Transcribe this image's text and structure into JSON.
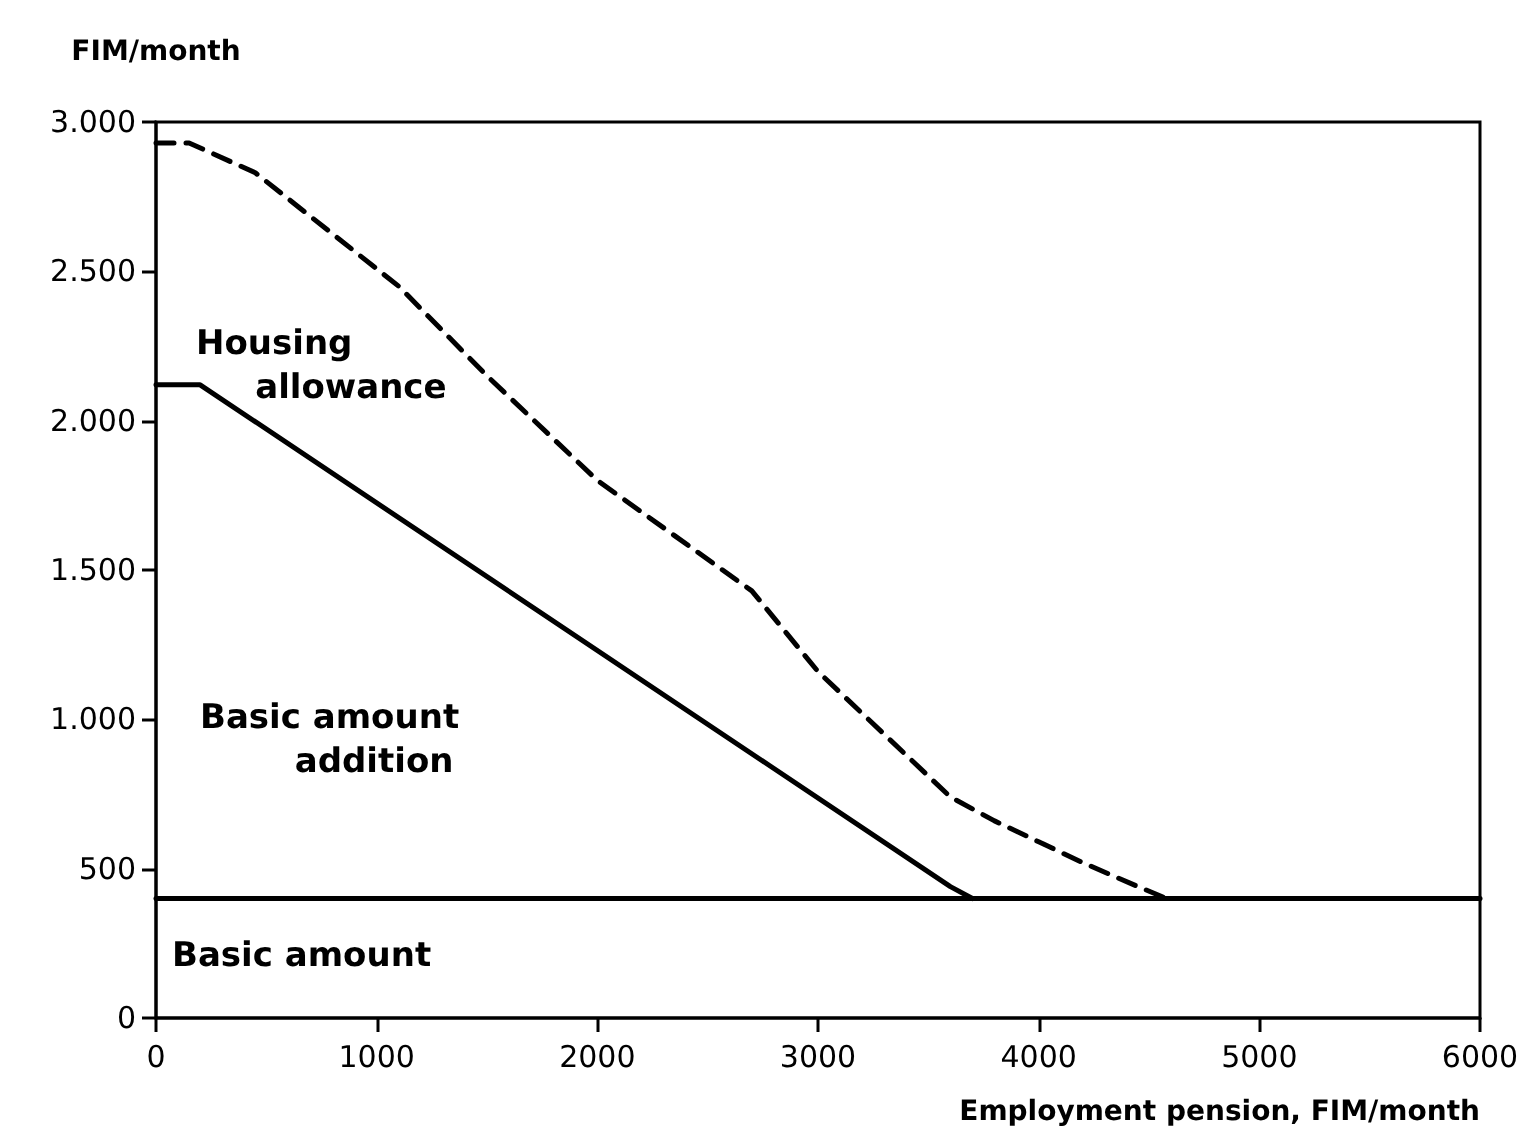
{
  "chart_data": {
    "type": "line",
    "xlabel": "Employment pension, FIM/month",
    "ylabel": "FIM/month",
    "xlim": [
      0,
      6000
    ],
    "xticks": [
      0,
      1000,
      2000,
      3000,
      4000,
      5000,
      6000
    ],
    "ylim": [
      0,
      3000
    ],
    "yticks": [
      {
        "value": 0,
        "label": "0"
      },
      {
        "value": 500,
        "label": "500"
      },
      {
        "value": 1000,
        "label": "1.000"
      },
      {
        "value": 1500,
        "label": "1.500"
      },
      {
        "value": 2000,
        "label": "2.000"
      },
      {
        "value": 2500,
        "label": "2.500"
      },
      {
        "value": 3000,
        "label": "3.000"
      }
    ],
    "grid": false,
    "marker": "none",
    "series": [
      {
        "color": "#000000",
        "line_style": "solid",
        "x": [
          0,
          6000
        ],
        "values": [
          400,
          400
        ]
      },
      {
        "color": "#000000",
        "line_style": "solid",
        "x": [
          0,
          200,
          3600,
          3700
        ],
        "values": [
          2120,
          2120,
          440,
          400
        ]
      },
      {
        "color": "#000000",
        "line_style": "dashed",
        "x": [
          0,
          150,
          450,
          1100,
          1500,
          2000,
          2700,
          3000,
          3300,
          3600,
          3800,
          4000,
          4200,
          4450,
          4580
        ],
        "values": [
          2930,
          2930,
          2830,
          2450,
          2150,
          1800,
          1430,
          1160,
          950,
          740,
          660,
          590,
          520,
          440,
          400
        ]
      }
    ],
    "annotations": [
      "Housing allowance",
      "Basic amount addition",
      "Basic amount"
    ]
  }
}
